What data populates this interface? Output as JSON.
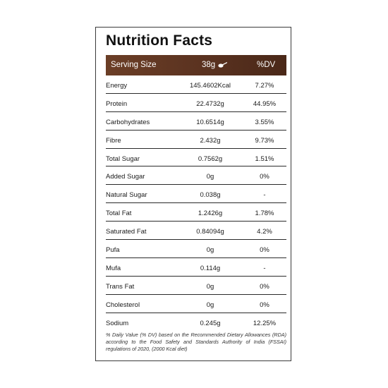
{
  "title": "Nutrition Facts",
  "header": {
    "serving_label": "Serving Size",
    "serving_value": "38g",
    "dv_label": "%DV",
    "icon": "spoon-icon"
  },
  "rows": [
    {
      "name": "Energy",
      "value": "145.4602Kcal",
      "dv": "7.27%"
    },
    {
      "name": "Protein",
      "value": "22.4732g",
      "dv": "44.95%"
    },
    {
      "name": "Carbohydrates",
      "value": "10.6514g",
      "dv": "3.55%"
    },
    {
      "name": "Fibre",
      "value": "2.432g",
      "dv": "9.73%"
    },
    {
      "name": "Total Sugar",
      "value": "0.7562g",
      "dv": "1.51%"
    },
    {
      "name": "Added Sugar",
      "value": "0g",
      "dv": "0%"
    },
    {
      "name": "Natural Sugar",
      "value": "0.038g",
      "dv": "-"
    },
    {
      "name": "Total Fat",
      "value": "1.2426g",
      "dv": "1.78%"
    },
    {
      "name": "Saturated Fat",
      "value": "0.84094g",
      "dv": "4.2%"
    },
    {
      "name": "Pufa",
      "value": "0g",
      "dv": "0%"
    },
    {
      "name": "Mufa",
      "value": "0.114g",
      "dv": "-"
    },
    {
      "name": "Trans Fat",
      "value": "0g",
      "dv": "0%"
    },
    {
      "name": "Cholesterol",
      "value": "0g",
      "dv": "0%"
    },
    {
      "name": "Sodium",
      "value": "0.245g",
      "dv": "12.25%"
    }
  ],
  "footnote": "% Daily Value (% DV) based on the Recommended Dietary Allowances (RDA) according to the Food Safety and Standards Authority of India (FSSAI) regulations of 2020, (2000 Kcal diet)",
  "colors": {
    "header_bg": "#5a3220",
    "header_text": "#ffffff",
    "border": "#2a2a2a"
  }
}
